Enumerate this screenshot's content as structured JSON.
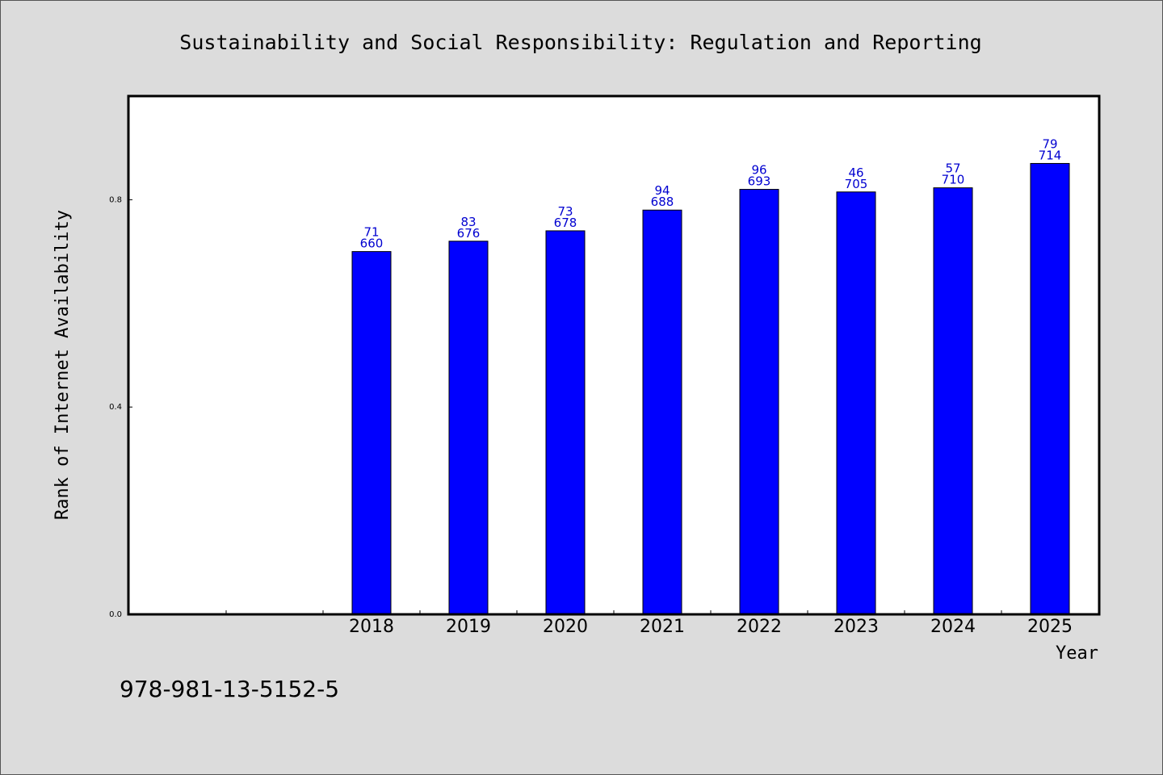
{
  "chart_data": {
    "type": "bar",
    "title": "Sustainability and Social Responsibility: Regulation and Reporting",
    "xlabel": "Year",
    "ylabel": "Rank of Internet Availability",
    "categories": [
      "2018",
      "2019",
      "2020",
      "2021",
      "2022",
      "2023",
      "2024",
      "2025"
    ],
    "values": [
      0.7,
      0.72,
      0.74,
      0.78,
      0.82,
      0.815,
      0.823,
      0.87
    ],
    "label_top": [
      "71",
      "83",
      "73",
      "94",
      "96",
      "46",
      "57",
      "79"
    ],
    "label_bottom": [
      "660",
      "676",
      "678",
      "688",
      "693",
      "705",
      "710",
      "714"
    ],
    "ylim": [
      0,
      1.0
    ],
    "yticks": [
      0.0,
      0.4,
      0.8
    ],
    "ytick_labels": [
      "0.0",
      "0.4",
      "0.8"
    ],
    "bar_color": "#0000ff",
    "label_color": "#0000d0",
    "grid": false
  },
  "footer": {
    "code": "978-981-13-5152-5"
  }
}
